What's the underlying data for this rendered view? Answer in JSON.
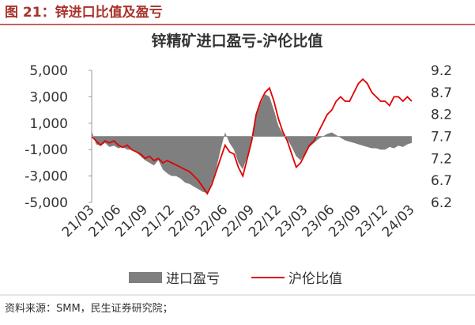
{
  "figure_label": "图 21：锌进口比值及盈亏",
  "source": "资料来源：SMM，民生证券研究院；",
  "chart_data": {
    "type": "area-line",
    "title": "锌精矿进口盈亏-沪伦比值",
    "categories": [
      "21/03",
      null,
      null,
      null,
      null,
      null,
      "21/06",
      null,
      null,
      null,
      null,
      null,
      "21/09",
      null,
      null,
      null,
      null,
      null,
      "21/12",
      null,
      null,
      null,
      null,
      null,
      "22/03",
      null,
      null,
      null,
      null,
      null,
      "22/06",
      null,
      null,
      null,
      null,
      null,
      "22/09",
      null,
      null,
      null,
      null,
      null,
      "22/12",
      null,
      null,
      null,
      null,
      null,
      "23/03",
      null,
      null,
      null,
      null,
      null,
      "23/06",
      null,
      null,
      null,
      null,
      null,
      "23/09",
      null,
      null,
      null,
      null,
      null,
      "23/12",
      null,
      null,
      null,
      null,
      null,
      "24/03"
    ],
    "series": [
      {
        "name": "进口盈亏",
        "color": "#7f7f7f",
        "values": [
          400,
          -600,
          -700,
          -500,
          -800,
          -700,
          -900,
          -800,
          -1000,
          -1000,
          -1200,
          -1500,
          -1800,
          -2000,
          -2200,
          -1800,
          -2500,
          -2800,
          -3000,
          -3000,
          -3200,
          -3500,
          -3600,
          -3800,
          -4000,
          -4200,
          -4300,
          -3500,
          -2500,
          -1000,
          300,
          -500,
          -1000,
          -2000,
          -2500,
          -1500,
          -300,
          1500,
          2500,
          3200,
          3000,
          2000,
          800,
          200,
          -200,
          -800,
          -1500,
          -1800,
          -1300,
          -800,
          -500,
          -200,
          0,
          200,
          300,
          100,
          -100,
          -300,
          -400,
          -500,
          -600,
          -700,
          -800,
          -900,
          -900,
          -1000,
          -1000,
          -800,
          -900,
          -700,
          -800,
          -600,
          -500
        ]
      },
      {
        "name": "沪伦比值",
        "color": "#e00000",
        "axis": "y2",
        "values": [
          7.7,
          7.6,
          7.5,
          7.6,
          7.55,
          7.6,
          7.5,
          7.45,
          7.5,
          7.4,
          7.35,
          7.3,
          7.2,
          7.25,
          7.15,
          7.2,
          7.1,
          7.15,
          7.1,
          7.05,
          7.0,
          6.95,
          6.9,
          6.8,
          6.7,
          6.55,
          6.4,
          6.6,
          6.9,
          7.2,
          7.5,
          7.35,
          7.3,
          7.0,
          6.8,
          7.2,
          7.6,
          8.2,
          8.5,
          8.7,
          8.8,
          8.5,
          8.1,
          7.8,
          7.6,
          7.3,
          7.0,
          7.1,
          7.3,
          7.5,
          7.6,
          7.8,
          8.0,
          8.2,
          8.3,
          8.5,
          8.6,
          8.5,
          8.5,
          8.7,
          8.9,
          9.0,
          8.9,
          8.7,
          8.6,
          8.5,
          8.5,
          8.4,
          8.6,
          8.6,
          8.5,
          8.6,
          8.5
        ]
      }
    ],
    "ylim": [
      -5000,
      5000
    ],
    "yticks": [
      {
        "value": -5000,
        "label": "-5,000"
      },
      {
        "value": -3000,
        "label": "-3,000"
      },
      {
        "value": -1000,
        "label": "-1,000"
      },
      {
        "value": 1000,
        "label": "1,000"
      },
      {
        "value": 3000,
        "label": "3,000"
      },
      {
        "value": 5000,
        "label": "5,000"
      }
    ],
    "y2lim": [
      6.2,
      9.2
    ],
    "y2ticks": [
      6.2,
      6.7,
      7.2,
      7.7,
      8.2,
      8.7,
      9.2
    ]
  }
}
